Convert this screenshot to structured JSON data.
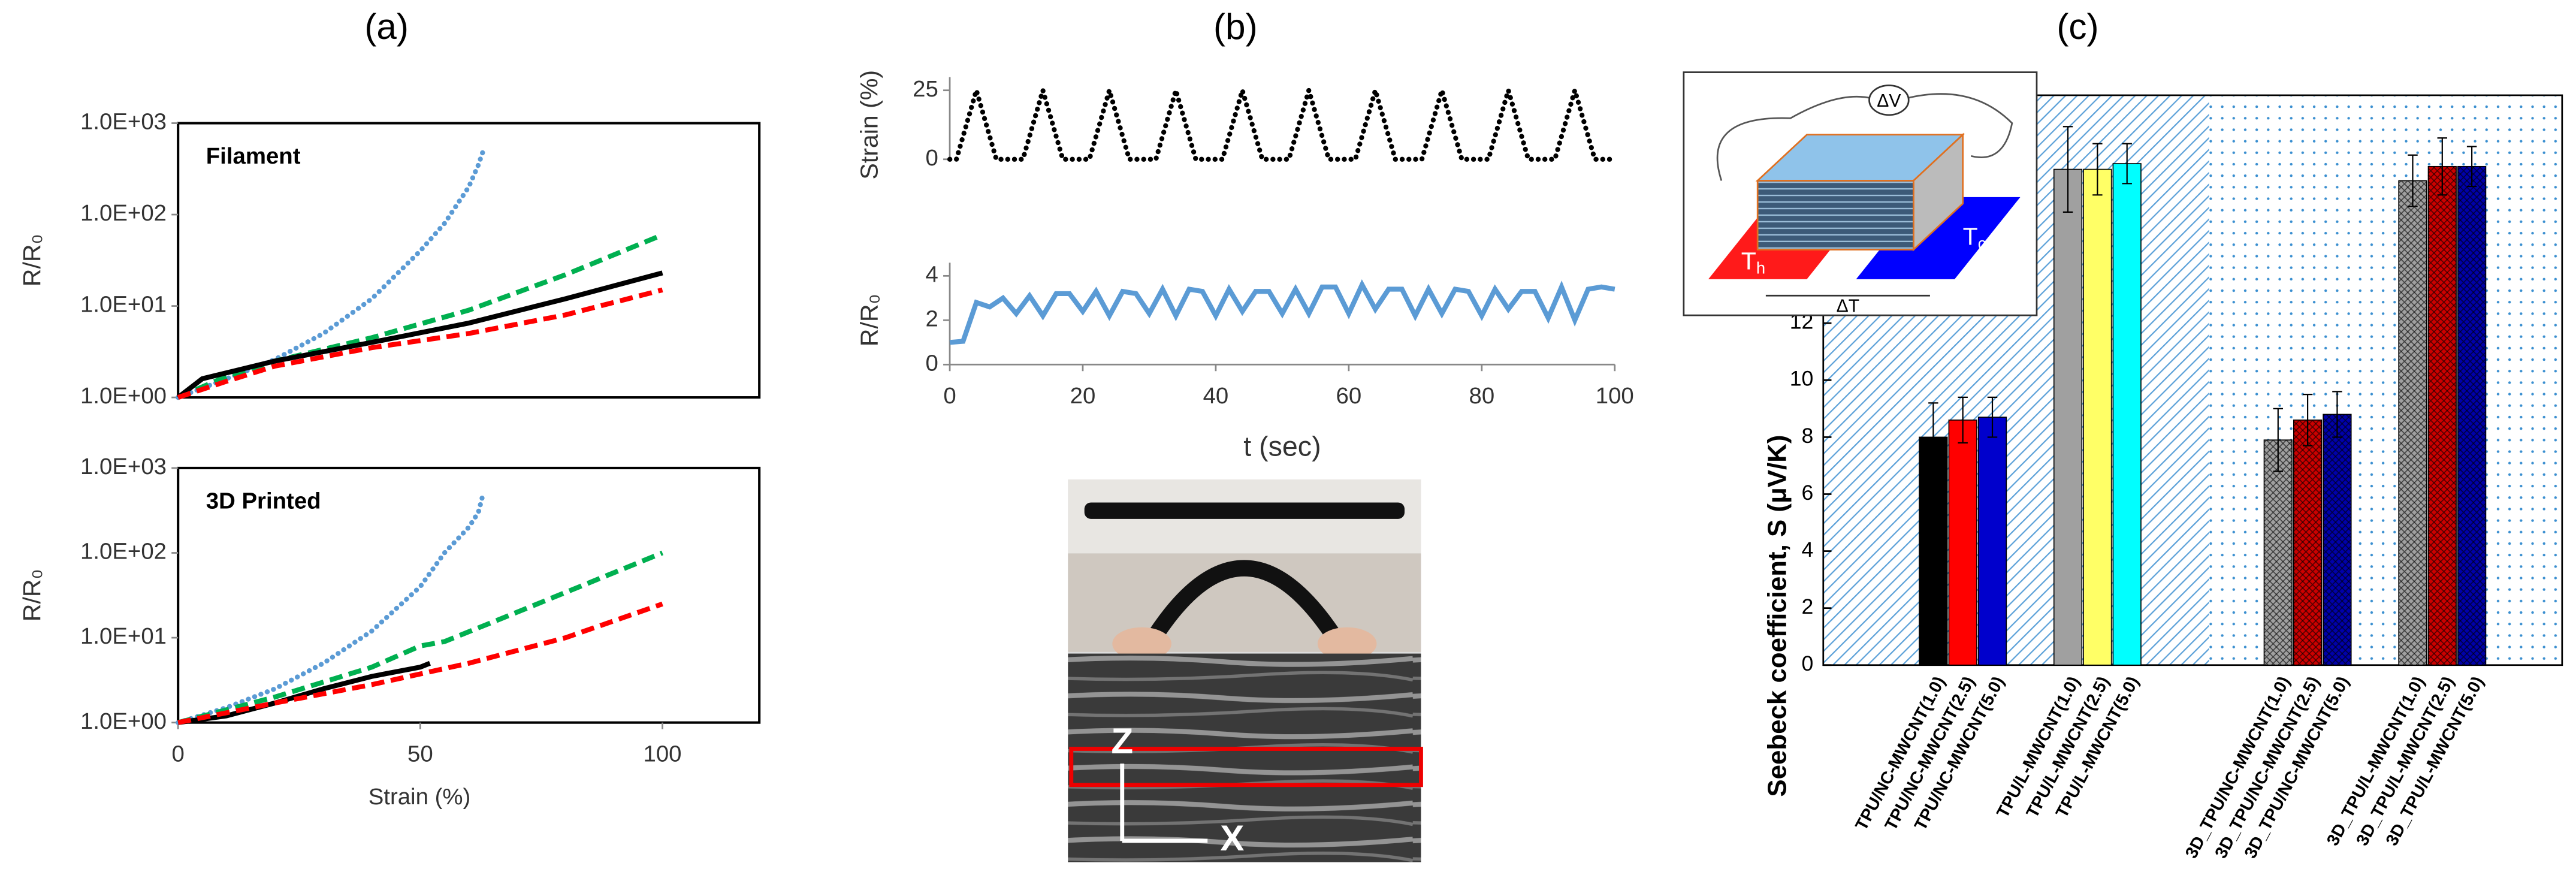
{
  "panels": [
    "(a)",
    "(b)",
    "(c)"
  ],
  "chart_data": [
    {
      "type": "line",
      "title": "Filament",
      "ylabel": "R/R₀",
      "log_y": true,
      "frame": true,
      "xlim": [
        0,
        120
      ],
      "ylim": [
        1,
        1000
      ],
      "yticks": [
        {
          "value": 1,
          "label": "1.0E+00"
        },
        {
          "value": 10,
          "label": "1.0E+01"
        },
        {
          "value": 100,
          "label": "1.0E+02"
        },
        {
          "value": 1000,
          "label": "1.0E+03"
        }
      ],
      "series": [
        {
          "color": "#5b9bd5",
          "dash": "dotted",
          "x": [
            0,
            10,
            20,
            30,
            40,
            50,
            55,
            60,
            62,
            63
          ],
          "values": [
            1,
            1.6,
            2.6,
            5,
            12,
            40,
            80,
            200,
            350,
            500
          ]
        },
        {
          "color": "#00b050",
          "dash": "dashed",
          "x": [
            0,
            10,
            20,
            40,
            60,
            80,
            100
          ],
          "values": [
            1,
            1.7,
            2.5,
            4.5,
            9,
            22,
            60
          ]
        },
        {
          "color": "#000000",
          "dash": "solid",
          "x": [
            0,
            5,
            20,
            40,
            60,
            80,
            100
          ],
          "values": [
            1,
            1.6,
            2.5,
            4,
            6.5,
            12,
            23
          ]
        },
        {
          "color": "#ff0000",
          "dash": "dashed",
          "x": [
            0,
            10,
            20,
            40,
            60,
            80,
            100
          ],
          "values": [
            1,
            1.5,
            2.2,
            3.5,
            5,
            8,
            15
          ]
        }
      ]
    },
    {
      "type": "line",
      "title": "3D Printed",
      "ylabel": "R/R₀",
      "xlabel": "Strain (%)",
      "log_y": true,
      "frame": true,
      "xlim": [
        0,
        120
      ],
      "ylim": [
        1,
        1000
      ],
      "xticks": [
        0,
        50,
        100
      ],
      "yticks": [
        {
          "value": 1,
          "label": "1.0E+00"
        },
        {
          "value": 10,
          "label": "1.0E+01"
        },
        {
          "value": 100,
          "label": "1.0E+02"
        },
        {
          "value": 1000,
          "label": "1.0E+03"
        }
      ],
      "series": [
        {
          "color": "#5b9bd5",
          "dash": "dotted",
          "x": [
            0,
            10,
            20,
            30,
            40,
            50,
            55,
            60,
            62,
            63
          ],
          "values": [
            1,
            1.5,
            2.5,
            5,
            12,
            40,
            100,
            200,
            300,
            500
          ]
        },
        {
          "color": "#00b050",
          "dash": "dashed",
          "x": [
            0,
            20,
            40,
            50,
            55,
            70,
            100
          ],
          "values": [
            1,
            2,
            4.5,
            8,
            9,
            20,
            100
          ]
        },
        {
          "color": "#000000",
          "dash": "solid",
          "x": [
            0,
            10,
            20,
            30,
            40,
            50,
            52
          ],
          "values": [
            1,
            1.2,
            1.7,
            2.5,
            3.5,
            4.5,
            5
          ]
        },
        {
          "color": "#ff0000",
          "dash": "dashed",
          "x": [
            0,
            20,
            40,
            60,
            80,
            100
          ],
          "values": [
            1,
            1.7,
            2.8,
            5,
            10,
            25
          ]
        }
      ]
    },
    {
      "type": "line",
      "ylabel": "Strain (%)",
      "frame": false,
      "xlim": [
        0,
        100
      ],
      "ylim": [
        0,
        25
      ],
      "yticks": [
        0,
        25
      ],
      "series": [
        {
          "color": "#000000",
          "dash": "dotted",
          "x": [
            0,
            1,
            4,
            7,
            11,
            14,
            17,
            21,
            24,
            27,
            31,
            34,
            37,
            41,
            44,
            47,
            51,
            54,
            57,
            61,
            64,
            67,
            71,
            74,
            77,
            81,
            84,
            87,
            91,
            94,
            97,
            100
          ],
          "values": [
            0,
            0,
            25,
            0,
            0,
            25,
            0,
            0,
            25,
            0,
            0,
            25,
            0,
            0,
            25,
            0,
            0,
            25,
            0,
            0,
            25,
            0,
            0,
            25,
            0,
            0,
            25,
            0,
            0,
            25,
            0,
            0
          ]
        }
      ]
    },
    {
      "type": "line",
      "ylabel": "R/R₀",
      "xlabel": "t (sec)",
      "frame": false,
      "xlim": [
        0,
        100
      ],
      "ylim": [
        0,
        4
      ],
      "yticks": [
        0,
        2,
        4
      ],
      "xticks": [
        0,
        20,
        40,
        60,
        80,
        100
      ],
      "series": [
        {
          "color": "#5b9bd5",
          "dash": "solid",
          "x": [
            0,
            2,
            4,
            6,
            8,
            10,
            12,
            14,
            16,
            18,
            20,
            22,
            24,
            26,
            28,
            30,
            32,
            34,
            36,
            38,
            40,
            42,
            44,
            46,
            48,
            50,
            52,
            54,
            56,
            58,
            60,
            62,
            64,
            66,
            68,
            70,
            72,
            74,
            76,
            78,
            80,
            82,
            84,
            86,
            88,
            90,
            92,
            94,
            96,
            98,
            100
          ],
          "values": [
            1.0,
            1.05,
            2.8,
            2.6,
            3.0,
            2.3,
            3.1,
            2.2,
            3.2,
            3.2,
            2.4,
            3.3,
            2.2,
            3.3,
            3.2,
            2.3,
            3.4,
            2.2,
            3.4,
            3.3,
            2.2,
            3.4,
            2.4,
            3.3,
            3.3,
            2.3,
            3.4,
            2.3,
            3.5,
            3.5,
            2.3,
            3.6,
            2.5,
            3.4,
            3.4,
            2.2,
            3.4,
            2.3,
            3.4,
            3.3,
            2.2,
            3.4,
            2.5,
            3.3,
            3.3,
            2.1,
            3.5,
            2.0,
            3.4,
            3.5,
            3.4
          ]
        }
      ]
    },
    {
      "type": "bar",
      "ylabel": "Seebeck coefficient, S (μV/K)",
      "ylim": [
        0,
        20
      ],
      "yticks": [
        0,
        2,
        4,
        6,
        8,
        10,
        12
      ],
      "categories": [
        "TPU/NC-MWCNT(1.0)",
        "TPU/NC-MWCNT(2.5)",
        "TPU/NC-MWCNT(5.0)",
        "TPU/L-MWCNT(1.0)",
        "TPU/L-MWCNT(2.5)",
        "TPU/L-MWCNT(5.0)",
        "3D_TPU/NC-MWCNT(1.0)",
        "3D_TPU/NC-MWCNT(2.5)",
        "3D_TPU/NC-MWCNT(5.0)",
        "3D_TPU/L-MWCNT(1.0)",
        "3D_TPU/L-MWCNT(2.5)",
        "3D_TPU/L-MWCNT(5.0)"
      ],
      "values": [
        8.0,
        8.6,
        8.7,
        17.4,
        17.4,
        17.6,
        7.9,
        8.6,
        8.8,
        17.0,
        17.5,
        17.5
      ],
      "errors": [
        1.2,
        0.8,
        0.7,
        1.5,
        0.9,
        0.7,
        1.1,
        0.9,
        0.8,
        0.9,
        1.0,
        0.7
      ],
      "colors": [
        "#000000",
        "#ff0000",
        "#0000cc",
        "#a0a0a0",
        "#ffff66",
        "#00ffff",
        "#a0a0a0",
        "#cc0000",
        "#0000aa",
        "#a0a0a0",
        "#cc0000",
        "#0000aa"
      ],
      "crosshatch": [
        false,
        false,
        false,
        false,
        false,
        false,
        true,
        true,
        true,
        true,
        true,
        true
      ]
    }
  ],
  "inset": {
    "voltage": "ΔV",
    "hot": "T",
    "hot_sub": "h",
    "cold": "T",
    "cold_sub": "c",
    "gradient": "ΔT"
  },
  "photo": {
    "z_axis": "Z",
    "x_axis": "X"
  }
}
